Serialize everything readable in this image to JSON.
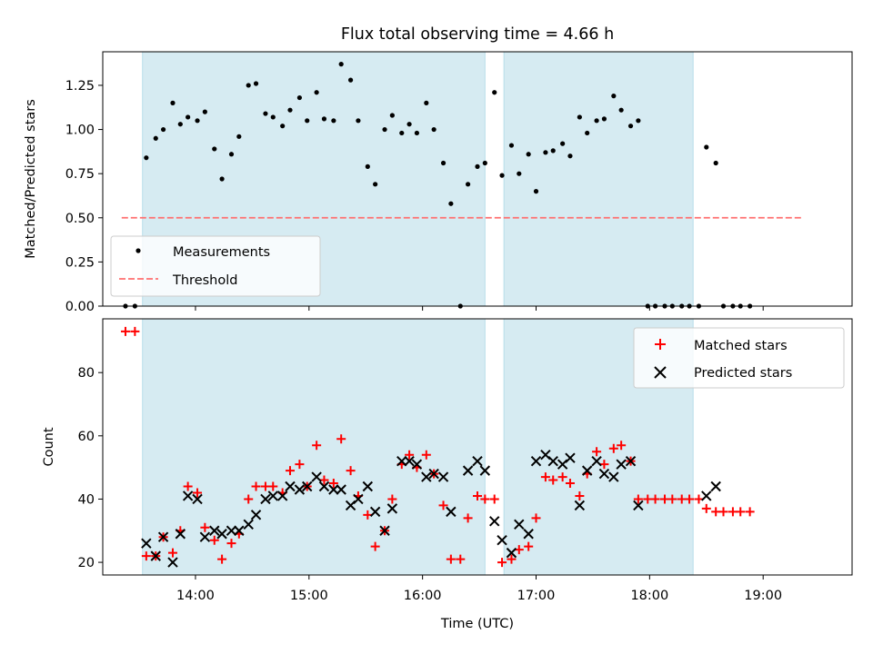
{
  "chart_data": [
    {
      "type": "scatter",
      "title": "Flux total observing time = 4.66 h",
      "xlabel": "",
      "ylabel": "Matched/Predicted stars",
      "xlim": [
        "13:11",
        "19:47"
      ],
      "ylim": [
        0.0,
        1.44
      ],
      "yticks": [
        "0.00",
        "0.25",
        "0.50",
        "0.75",
        "1.00",
        "1.25"
      ],
      "grid": false,
      "legend": "lower-left",
      "shaded_intervals": [
        [
          "13:32",
          "16:33"
        ],
        [
          "16:43",
          "18:23"
        ]
      ],
      "series": [
        {
          "name": "Measurements",
          "marker": "dot",
          "color": "#000000",
          "points": [
            [
              "13:23",
              0.0
            ],
            [
              "13:28",
              0.0
            ],
            [
              "13:34",
              0.84
            ],
            [
              "13:39",
              0.95
            ],
            [
              "13:43",
              1.0
            ],
            [
              "13:48",
              1.15
            ],
            [
              "13:52",
              1.03
            ],
            [
              "13:56",
              1.07
            ],
            [
              "14:01",
              1.05
            ],
            [
              "14:05",
              1.1
            ],
            [
              "14:10",
              0.89
            ],
            [
              "14:14",
              0.72
            ],
            [
              "14:19",
              0.86
            ],
            [
              "14:23",
              0.96
            ],
            [
              "14:28",
              1.25
            ],
            [
              "14:32",
              1.26
            ],
            [
              "14:37",
              1.09
            ],
            [
              "14:41",
              1.07
            ],
            [
              "14:46",
              1.02
            ],
            [
              "14:50",
              1.11
            ],
            [
              "14:55",
              1.18
            ],
            [
              "14:59",
              1.05
            ],
            [
              "15:04",
              1.21
            ],
            [
              "15:08",
              1.06
            ],
            [
              "15:13",
              1.05
            ],
            [
              "15:17",
              1.37
            ],
            [
              "15:22",
              1.28
            ],
            [
              "15:26",
              1.05
            ],
            [
              "15:31",
              0.79
            ],
            [
              "15:35",
              0.69
            ],
            [
              "15:40",
              1.0
            ],
            [
              "15:44",
              1.08
            ],
            [
              "15:49",
              0.98
            ],
            [
              "15:53",
              1.03
            ],
            [
              "15:57",
              0.98
            ],
            [
              "16:02",
              1.15
            ],
            [
              "16:06",
              1.0
            ],
            [
              "16:11",
              0.81
            ],
            [
              "16:15",
              0.58
            ],
            [
              "16:20",
              0.0
            ],
            [
              "16:24",
              0.69
            ],
            [
              "16:29",
              0.79
            ],
            [
              "16:33",
              0.81
            ],
            [
              "16:38",
              1.21
            ],
            [
              "16:42",
              0.74
            ],
            [
              "16:47",
              0.91
            ],
            [
              "16:51",
              0.75
            ],
            [
              "16:56",
              0.86
            ],
            [
              "17:00",
              0.65
            ],
            [
              "17:05",
              0.87
            ],
            [
              "17:09",
              0.88
            ],
            [
              "17:14",
              0.92
            ],
            [
              "17:18",
              0.85
            ],
            [
              "17:23",
              1.07
            ],
            [
              "17:27",
              0.98
            ],
            [
              "17:32",
              1.05
            ],
            [
              "17:36",
              1.06
            ],
            [
              "17:41",
              1.19
            ],
            [
              "17:45",
              1.11
            ],
            [
              "17:50",
              1.02
            ],
            [
              "17:54",
              1.05
            ],
            [
              "17:59",
              0.0
            ],
            [
              "18:03",
              0.0
            ],
            [
              "18:08",
              0.0
            ],
            [
              "18:12",
              0.0
            ],
            [
              "18:17",
              0.0
            ],
            [
              "18:21",
              0.0
            ],
            [
              "18:26",
              0.0
            ],
            [
              "18:30",
              0.9
            ],
            [
              "18:35",
              0.81
            ],
            [
              "18:39",
              0.0
            ],
            [
              "18:44",
              0.0
            ],
            [
              "18:48",
              0.0
            ],
            [
              "18:53",
              0.0
            ]
          ]
        },
        {
          "name": "Threshold",
          "style": "dashed-line",
          "color": "#ff7070",
          "points": [
            [
              "13:21",
              0.5
            ],
            [
              "19:21",
              0.5
            ]
          ]
        }
      ]
    },
    {
      "type": "scatter",
      "title": "",
      "xlabel": "Time (UTC)",
      "ylabel": "Count",
      "xlim": [
        "13:11",
        "19:47"
      ],
      "ylim": [
        16,
        97
      ],
      "yticks": [
        "20",
        "40",
        "60",
        "80"
      ],
      "xticks": [
        "14:00",
        "15:00",
        "16:00",
        "17:00",
        "18:00",
        "19:00"
      ],
      "grid": false,
      "legend": "top-right",
      "shaded_intervals": [
        [
          "13:32",
          "16:33"
        ],
        [
          "16:43",
          "18:23"
        ]
      ],
      "series": [
        {
          "name": "Matched stars",
          "marker": "plus",
          "color": "#ff0000",
          "points": [
            [
              "13:23",
              93
            ],
            [
              "13:28",
              93
            ],
            [
              "13:34",
              22
            ],
            [
              "13:39",
              22
            ],
            [
              "13:43",
              28
            ],
            [
              "13:48",
              23
            ],
            [
              "13:52",
              30
            ],
            [
              "13:56",
              44
            ],
            [
              "14:01",
              42
            ],
            [
              "14:05",
              31
            ],
            [
              "14:10",
              27
            ],
            [
              "14:14",
              21
            ],
            [
              "14:19",
              26
            ],
            [
              "14:23",
              29
            ],
            [
              "14:28",
              40
            ],
            [
              "14:32",
              44
            ],
            [
              "14:37",
              44
            ],
            [
              "14:41",
              44
            ],
            [
              "14:46",
              42
            ],
            [
              "14:50",
              49
            ],
            [
              "14:55",
              51
            ],
            [
              "14:59",
              44
            ],
            [
              "15:04",
              57
            ],
            [
              "15:08",
              46
            ],
            [
              "15:13",
              45
            ],
            [
              "15:17",
              59
            ],
            [
              "15:22",
              49
            ],
            [
              "15:26",
              41
            ],
            [
              "15:31",
              35
            ],
            [
              "15:35",
              25
            ],
            [
              "15:40",
              30
            ],
            [
              "15:44",
              40
            ],
            [
              "15:49",
              51
            ],
            [
              "15:53",
              54
            ],
            [
              "15:57",
              50
            ],
            [
              "16:02",
              54
            ],
            [
              "16:06",
              48
            ],
            [
              "16:11",
              38
            ],
            [
              "16:15",
              21
            ],
            [
              "16:20",
              21
            ],
            [
              "16:24",
              34
            ],
            [
              "16:29",
              41
            ],
            [
              "16:33",
              40
            ],
            [
              "16:38",
              40
            ],
            [
              "16:42",
              20
            ],
            [
              "16:47",
              21
            ],
            [
              "16:51",
              24
            ],
            [
              "16:56",
              25
            ],
            [
              "17:00",
              34
            ],
            [
              "17:05",
              47
            ],
            [
              "17:09",
              46
            ],
            [
              "17:14",
              47
            ],
            [
              "17:18",
              45
            ],
            [
              "17:23",
              41
            ],
            [
              "17:27",
              48
            ],
            [
              "17:32",
              55
            ],
            [
              "17:36",
              51
            ],
            [
              "17:41",
              56
            ],
            [
              "17:45",
              57
            ],
            [
              "17:50",
              52
            ],
            [
              "17:54",
              40
            ],
            [
              "17:59",
              40
            ],
            [
              "18:03",
              40
            ],
            [
              "18:08",
              40
            ],
            [
              "18:12",
              40
            ],
            [
              "18:17",
              40
            ],
            [
              "18:21",
              40
            ],
            [
              "18:26",
              40
            ],
            [
              "18:30",
              37
            ],
            [
              "18:35",
              36
            ],
            [
              "18:39",
              36
            ],
            [
              "18:44",
              36
            ],
            [
              "18:48",
              36
            ],
            [
              "18:53",
              36
            ]
          ]
        },
        {
          "name": "Predicted stars",
          "marker": "x",
          "color": "#000000",
          "points": [
            [
              "13:34",
              26
            ],
            [
              "13:39",
              22
            ],
            [
              "13:43",
              28
            ],
            [
              "13:48",
              20
            ],
            [
              "13:52",
              29
            ],
            [
              "13:56",
              41
            ],
            [
              "14:01",
              40
            ],
            [
              "14:05",
              28
            ],
            [
              "14:10",
              30
            ],
            [
              "14:14",
              29
            ],
            [
              "14:19",
              30
            ],
            [
              "14:23",
              30
            ],
            [
              "14:28",
              32
            ],
            [
              "14:32",
              35
            ],
            [
              "14:37",
              40
            ],
            [
              "14:41",
              41
            ],
            [
              "14:46",
              41
            ],
            [
              "14:50",
              44
            ],
            [
              "14:55",
              43
            ],
            [
              "14:59",
              44
            ],
            [
              "15:04",
              47
            ],
            [
              "15:08",
              44
            ],
            [
              "15:13",
              43
            ],
            [
              "15:17",
              43
            ],
            [
              "15:22",
              38
            ],
            [
              "15:26",
              40
            ],
            [
              "15:31",
              44
            ],
            [
              "15:35",
              36
            ],
            [
              "15:40",
              30
            ],
            [
              "15:44",
              37
            ],
            [
              "15:49",
              52
            ],
            [
              "15:53",
              52
            ],
            [
              "15:57",
              51
            ],
            [
              "16:02",
              47
            ],
            [
              "16:06",
              48
            ],
            [
              "16:11",
              47
            ],
            [
              "16:15",
              36
            ],
            [
              "16:24",
              49
            ],
            [
              "16:29",
              52
            ],
            [
              "16:33",
              49
            ],
            [
              "16:38",
              33
            ],
            [
              "16:42",
              27
            ],
            [
              "16:47",
              23
            ],
            [
              "16:51",
              32
            ],
            [
              "16:56",
              29
            ],
            [
              "17:00",
              52
            ],
            [
              "17:05",
              54
            ],
            [
              "17:09",
              52
            ],
            [
              "17:14",
              51
            ],
            [
              "17:18",
              53
            ],
            [
              "17:23",
              38
            ],
            [
              "17:27",
              49
            ],
            [
              "17:32",
              52
            ],
            [
              "17:36",
              48
            ],
            [
              "17:41",
              47
            ],
            [
              "17:45",
              51
            ],
            [
              "17:50",
              52
            ],
            [
              "17:54",
              38
            ],
            [
              "18:30",
              41
            ],
            [
              "18:35",
              44
            ]
          ]
        }
      ]
    }
  ]
}
